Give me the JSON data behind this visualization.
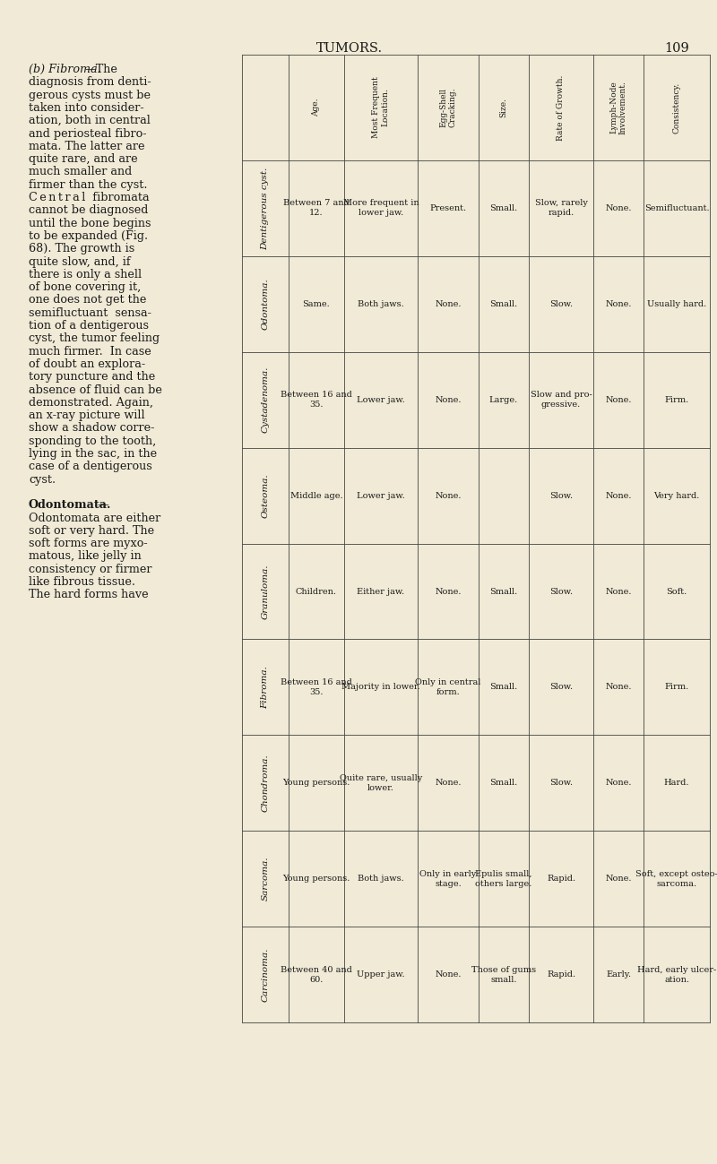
{
  "title": "TUMORS.",
  "page_number": "109",
  "bg_color": "#f0ead6",
  "text_color": "#1a1a1a",
  "col_headers": [
    "",
    "Age.",
    "Most Frequent\nLocation.",
    "Egg-Shell\nCracking.",
    "Size.",
    "Rate of Growth.",
    "Lymph-Node\nInvolvement.",
    "Consistency."
  ],
  "rows": [
    {
      "name": "Dentigerous cyst.",
      "age": "Between 7 and\n12.",
      "location": "More frequent in\nlower jaw.",
      "egg_shell": "Present.",
      "size": "Small.",
      "growth": "Slow, rarely\nrapid.",
      "lymph": "None.",
      "consistency": "Semifluctuant."
    },
    {
      "name": "Odontoma.",
      "age": "Same.",
      "location": "Both jaws.",
      "egg_shell": "None.",
      "size": "Small.",
      "growth": "Slow.",
      "lymph": "None.",
      "consistency": "Usually hard."
    },
    {
      "name": "Cystadenoma.",
      "age": "Between 16 and\n35.",
      "location": "Lower jaw.",
      "egg_shell": "None.",
      "size": "Large.",
      "growth": "Slow and pro-\ngressive.",
      "lymph": "None.",
      "consistency": "Firm."
    },
    {
      "name": "Osteoma.",
      "age": "Middle age.",
      "location": "Lower jaw.",
      "egg_shell": "None.",
      "size": "",
      "growth": "Slow.",
      "lymph": "None.",
      "consistency": "Very hard."
    },
    {
      "name": "Granuloma.",
      "age": "Children.",
      "location": "Either jaw.",
      "egg_shell": "None.",
      "size": "Small.",
      "growth": "Slow.",
      "lymph": "None.",
      "consistency": "Soft."
    },
    {
      "name": "Fibroma.",
      "age": "Between 16 and\n35.",
      "location": "Majority in lower.",
      "egg_shell": "Only in central\nform.",
      "size": "Small.",
      "growth": "Slow.",
      "lymph": "None.",
      "consistency": "Firm."
    },
    {
      "name": "Chondroma.",
      "age": "Young persons.",
      "location": "Quite rare, usually\nlower.",
      "egg_shell": "None.",
      "size": "Small.",
      "growth": "Slow.",
      "lymph": "None.",
      "consistency": "Hard."
    },
    {
      "name": "Sarcoma.",
      "age": "Young persons.",
      "location": "Both jaws.",
      "egg_shell": "Only in early\nstage.",
      "size": "Epulis small,\nothers large.",
      "growth": "Rapid.",
      "lymph": "None.",
      "consistency": "Soft, except osteo-\nsarcoma."
    },
    {
      "name": "Carcinoma.",
      "age": "Between 40 and\n60.",
      "location": "Upper jaw.",
      "egg_shell": "None.",
      "size": "Those of gums\nsmall.",
      "growth": "Rapid.",
      "lymph": "Early.",
      "consistency": "Hard, early ulcer-\nation."
    }
  ],
  "left_text_lines": [
    [
      "italic",
      "(b) Fibroma.",
      "—The"
    ],
    [
      "normal",
      "diagnosis from denti-"
    ],
    [
      "normal",
      "gerous cysts must be"
    ],
    [
      "normal",
      "taken into consider-"
    ],
    [
      "normal",
      "ation, both in central"
    ],
    [
      "normal",
      "and periosteal fibro-"
    ],
    [
      "normal",
      "mata. The latter are"
    ],
    [
      "normal",
      "quite rare, and are"
    ],
    [
      "normal",
      "much smaller and"
    ],
    [
      "normal",
      "firmer than the cyst."
    ],
    [
      "spaced",
      "Central fibromata"
    ],
    [
      "normal",
      "cannot be diagnosed"
    ],
    [
      "normal",
      "until the bone begins"
    ],
    [
      "normal",
      "to be expanded (Fig."
    ],
    [
      "normal",
      "68). The growth is"
    ],
    [
      "normal",
      "quite slow, and, if"
    ],
    [
      "normal",
      "there is only a shell"
    ],
    [
      "normal",
      "of bone covering it,"
    ],
    [
      "normal",
      "one does not get the"
    ],
    [
      "normal",
      "semifluctuant  sensa-"
    ],
    [
      "normal",
      "tion of a dentigerous"
    ],
    [
      "normal",
      "cyst, the tumor feeling"
    ],
    [
      "normal",
      "much firmer.  In case"
    ],
    [
      "normal",
      "of doubt an explora-"
    ],
    [
      "normal",
      "tory puncture and the"
    ],
    [
      "normal",
      "absence of fluid can be"
    ],
    [
      "normal",
      "demonstrated. Again,"
    ],
    [
      "normal",
      "an x-ray picture will"
    ],
    [
      "normal",
      "show a shadow corre-"
    ],
    [
      "normal",
      "sponding to the tooth,"
    ],
    [
      "normal",
      "lying in the sac, in the"
    ],
    [
      "normal",
      "case of a dentigerous"
    ],
    [
      "normal",
      "cyst."
    ],
    [
      "blank",
      ""
    ],
    [
      "bold_heading",
      "Odontomata.",
      "—"
    ],
    [
      "normal",
      "Odontomata are either"
    ],
    [
      "normal",
      "soft or very hard. The"
    ],
    [
      "normal",
      "soft forms are myxo-"
    ],
    [
      "normal",
      "matous, like jelly in"
    ],
    [
      "normal",
      "consistency or firmer"
    ],
    [
      "normal",
      "like fibrous tissue."
    ],
    [
      "normal",
      "The hard forms have"
    ]
  ]
}
